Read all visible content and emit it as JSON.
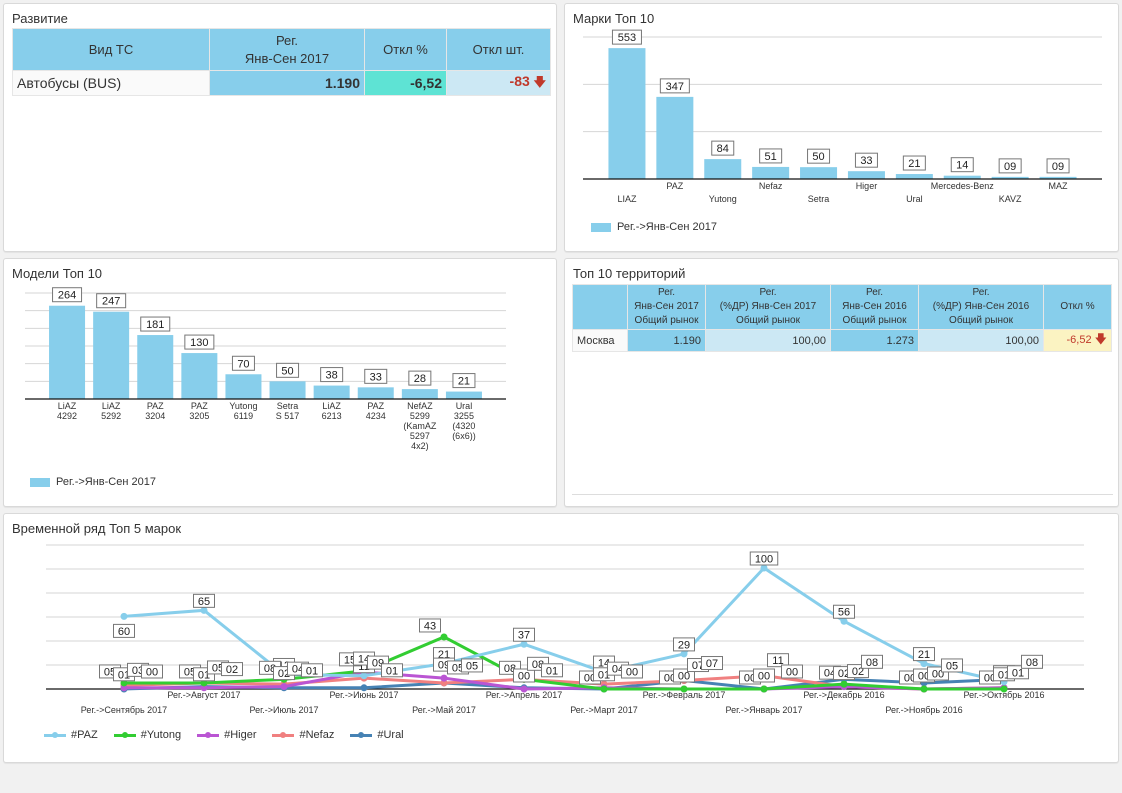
{
  "panels": {
    "razvitie": {
      "title": "Развитие",
      "headers": [
        "Вид ТС",
        "Рег.\nЯнв-Сен 2017",
        "Откл %",
        "Откл шт."
      ],
      "header_lines": {
        "reg": [
          "Рег.",
          "Янв-Сен 2017"
        ]
      },
      "rows": [
        {
          "name": "Автобусы (BUS)",
          "reg": "1.190",
          "otkl_pct": "-6,52",
          "otkl_sht": "-83",
          "trend": "down"
        }
      ]
    },
    "marki": {
      "title": "Марки Топ 10",
      "legend": "Рег.->Янв-Сен 2017"
    },
    "modeli": {
      "title": "Модели Топ 10",
      "legend": "Рег.->Янв-Сен 2017"
    },
    "territories": {
      "title": "Топ 10 территорий",
      "headers": [
        {
          "lines": [
            ""
          ]
        },
        {
          "lines": [
            "Рег.",
            "Янв-Сен 2017",
            "Общий рынок"
          ]
        },
        {
          "lines": [
            "Рег.",
            "(%ДР) Янв-Сен 2017",
            "Общий рынок"
          ]
        },
        {
          "lines": [
            "Рег.",
            "Янв-Сен 2016",
            "Общий рынок"
          ]
        },
        {
          "lines": [
            "Рег.",
            "(%ДР) Янв-Сен 2016",
            "Общий рынок"
          ]
        },
        {
          "lines": [
            "Откл %"
          ]
        }
      ],
      "rows": [
        {
          "name": "Москва",
          "reg2017": "1.190",
          "dr2017": "100,00",
          "reg2016": "1.273",
          "dr2016": "100,00",
          "otkl": "-6,52",
          "trend": "down"
        }
      ]
    },
    "timeseries": {
      "title": "Временной ряд Топ 5 марок"
    }
  },
  "colors": {
    "bar": "#87ceeb",
    "header": "#87ceeb",
    "light_cell": "#cce8f4",
    "teal_cell": "#5ee3d4",
    "yellow_cell": "#fbf3c2",
    "negative": "#c0392b"
  },
  "chart_data": [
    {
      "id": "marki",
      "type": "bar",
      "title": "Марки Топ 10",
      "categories": [
        "LIAZ",
        "PAZ",
        "Yutong",
        "Nefaz",
        "Setra",
        "Higer",
        "Ural",
        "Mercedes-Benz",
        "KAVZ",
        "MAZ"
      ],
      "values": [
        553,
        347,
        84,
        51,
        50,
        33,
        21,
        14,
        9,
        9
      ],
      "data_labels": [
        "553",
        "347",
        "84",
        "51",
        "50",
        "33",
        "21",
        "14",
        "09",
        "09"
      ],
      "series_name": "Рег.->Янв-Сен 2017",
      "ylim": [
        0,
        600
      ],
      "grid": true,
      "legend": "bottom-left"
    },
    {
      "id": "modeli",
      "type": "bar",
      "title": "Модели Топ 10",
      "categories": [
        [
          "LiAZ",
          "4292"
        ],
        [
          "LiAZ",
          "5292"
        ],
        [
          "PAZ",
          "3204"
        ],
        [
          "PAZ",
          "3205"
        ],
        [
          "Yutong",
          "6119"
        ],
        [
          "Setra",
          "S 517"
        ],
        [
          "LiAZ",
          "6213"
        ],
        [
          "PAZ",
          "4234"
        ],
        [
          "NefAZ",
          "5299",
          "(KamAZ",
          "5297",
          "4x2)"
        ],
        [
          "Ural",
          "3255",
          "(4320",
          "(6x6))"
        ]
      ],
      "values": [
        264,
        247,
        181,
        130,
        70,
        50,
        38,
        33,
        28,
        21
      ],
      "data_labels": [
        "264",
        "247",
        "181",
        "130",
        "70",
        "50",
        "38",
        "33",
        "28",
        "21"
      ],
      "series_name": "Рег.->Янв-Сен 2017",
      "ylim": [
        0,
        300
      ],
      "grid": true,
      "legend": "bottom-left"
    },
    {
      "id": "timeseries",
      "type": "line",
      "title": "Временной ряд Топ 5 марок",
      "x": [
        "Рег.->Сентябрь 2017",
        "Рег.->Август 2017",
        "Рег.->Июль 2017",
        "Рег.->Июнь 2017",
        "Рег.->Май 2017",
        "Рег.->Апрель 2017",
        "Рег.->Март 2017",
        "Рег.->Февраль 2017",
        "Рег.->Январь 2017",
        "Рег.->Декабрь 2016",
        "Рег.->Ноябрь 2016",
        "Рег.->Октябрь 2016"
      ],
      "series": [
        {
          "name": "#PAZ",
          "color": "#87ceeb",
          "values": [
            60,
            65,
            12,
            11,
            21,
            37,
            14,
            29,
            100,
            56,
            21,
            6
          ]
        },
        {
          "name": "#Yutong",
          "color": "#32cd32",
          "values": [
            5,
            5,
            8,
            15,
            43,
            8,
            0,
            0,
            0,
            4,
            0,
            0
          ]
        },
        {
          "name": "#Higer",
          "color": "#ba55d3",
          "values": [
            1,
            1,
            2,
            14,
            9,
            0,
            1,
            0,
            0,
            2,
            0,
            1
          ]
        },
        {
          "name": "#Nefaz",
          "color": "#f08080",
          "values": [
            3,
            5,
            4,
            9,
            5,
            8,
            4,
            7,
            11,
            2,
            0,
            1
          ]
        },
        {
          "name": "#Ural",
          "color": "#4682b4",
          "values": [
            0,
            2,
            1,
            1,
            5,
            1,
            0,
            7,
            0,
            8,
            5,
            8
          ]
        }
      ],
      "ylim": [
        0,
        100
      ],
      "grid": true,
      "legend": "bottom-left"
    }
  ]
}
